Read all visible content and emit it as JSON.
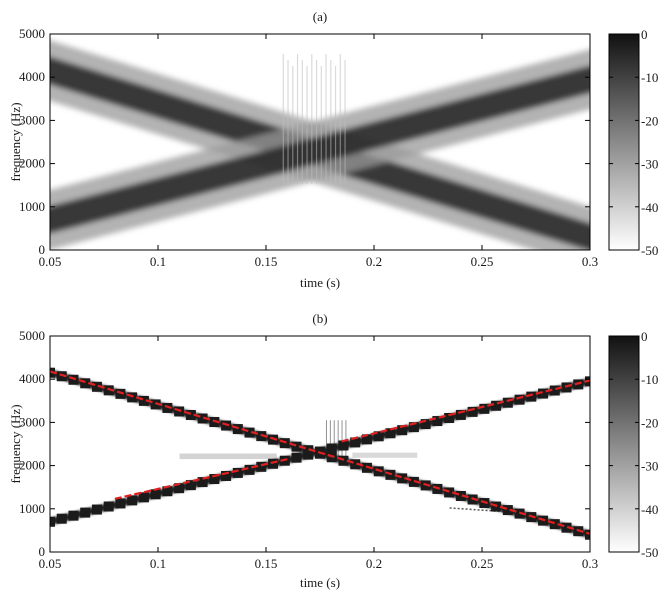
{
  "chart_data": [
    {
      "type": "heatmap",
      "title": "(a)",
      "xlabel": "time (s)",
      "ylabel": "frequency (Hz)",
      "xlim": [
        0.05,
        0.3
      ],
      "ylim": [
        0,
        5000
      ],
      "xticks": [
        0.05,
        0.1,
        0.15,
        0.2,
        0.25,
        0.3
      ],
      "xtick_labels": [
        "0.05",
        "0.1",
        "0.15",
        "0.2",
        "0.25",
        "0.3"
      ],
      "yticks": [
        0,
        1000,
        2000,
        3000,
        4000,
        5000
      ],
      "ytick_labels": [
        "0",
        "1000",
        "2000",
        "3000",
        "4000",
        "5000"
      ],
      "colorbar": {
        "range": [
          -50,
          0
        ],
        "ticks": [
          0,
          -10,
          -20,
          -30,
          -40,
          -50
        ],
        "tick_labels": [
          "0",
          "-10",
          "-20",
          "-30",
          "-40",
          "-50"
        ],
        "colormap": "gray reversed (0 = black, -50 = white)"
      },
      "grid": false,
      "series": [
        {
          "x": [
            0.05,
            0.3
          ],
          "y": [
            4150,
            300
          ]
        },
        {
          "x": [
            0.05,
            0.3
          ],
          "y": [
            700,
            3950
          ]
        }
      ]
    },
    {
      "type": "heatmap",
      "title": "(b)",
      "xlabel": "time (s)",
      "ylabel": "frequency (Hz)",
      "xlim": [
        0.05,
        0.3
      ],
      "ylim": [
        0,
        5000
      ],
      "xticks": [
        0.05,
        0.1,
        0.15,
        0.2,
        0.25,
        0.3
      ],
      "xtick_labels": [
        "0.05",
        "0.1",
        "0.15",
        "0.2",
        "0.25",
        "0.3"
      ],
      "yticks": [
        0,
        1000,
        2000,
        3000,
        4000,
        5000
      ],
      "ytick_labels": [
        "0",
        "1000",
        "2000",
        "3000",
        "4000",
        "5000"
      ],
      "colorbar": {
        "range": [
          -50,
          0
        ],
        "ticks": [
          0,
          -10,
          -20,
          -30,
          -40,
          -50
        ],
        "tick_labels": [
          "0",
          "-10",
          "-20",
          "-30",
          "-40",
          "-50"
        ],
        "colormap": "gray reversed (0 = black, -50 = white)"
      },
      "grid": false,
      "series": [
        {
          "x": [
            0.05,
            0.3
          ],
          "y": [
            4150,
            400
          ]
        },
        {
          "x": [
            0.05,
            0.3
          ],
          "y": [
            700,
            3950
          ]
        }
      ],
      "overlay_color": "#e02020",
      "overlay_series": [
        {
          "x": [
            0.05,
            0.3
          ],
          "y": [
            4180,
            420
          ]
        },
        {
          "x": [
            0.08,
            0.16
          ],
          "y": [
            1230,
            2150
          ]
        },
        {
          "x": [
            0.185,
            0.3
          ],
          "y": [
            2560,
            3970
          ]
        }
      ]
    }
  ]
}
